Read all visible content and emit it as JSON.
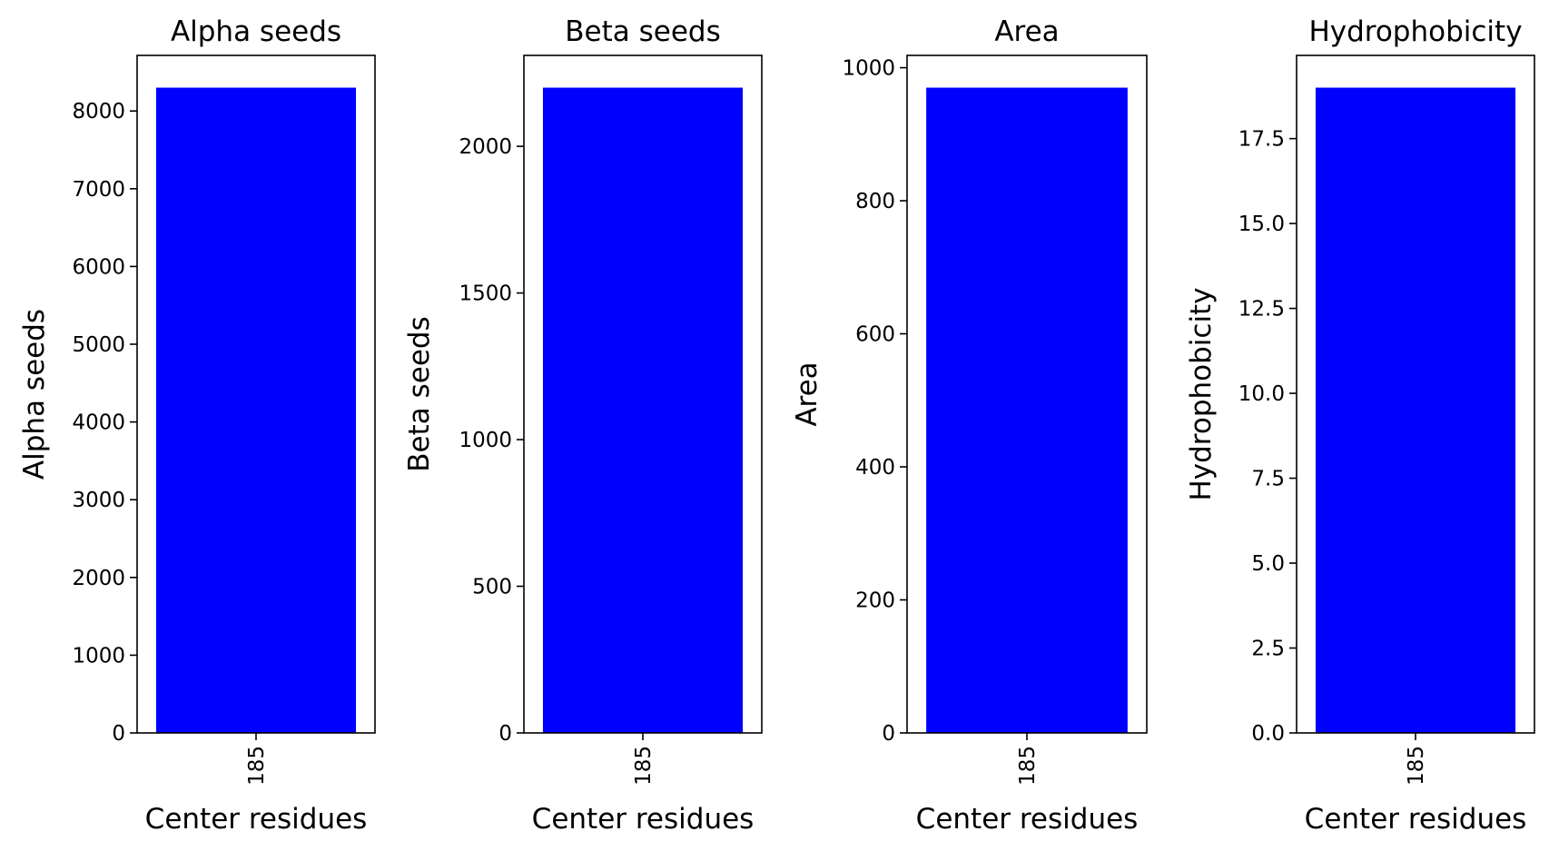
{
  "chart_data": [
    {
      "type": "bar",
      "title": "Alpha seeds",
      "xlabel": "Center residues",
      "ylabel": "Alpha seeds",
      "categories": [
        "185"
      ],
      "values": [
        8300
      ],
      "ylim": [
        0,
        8715
      ],
      "yticks": [
        "0",
        "1000",
        "2000",
        "3000",
        "4000",
        "5000",
        "6000",
        "7000",
        "8000"
      ],
      "ytick_values": [
        0,
        1000,
        2000,
        3000,
        4000,
        5000,
        6000,
        7000,
        8000
      ],
      "color": "#0000ff",
      "grid": false
    },
    {
      "type": "bar",
      "title": "Beta seeds",
      "xlabel": "Center residues",
      "ylabel": "Beta seeds",
      "categories": [
        "185"
      ],
      "values": [
        2200
      ],
      "ylim": [
        0,
        2310
      ],
      "yticks": [
        "0",
        "500",
        "1000",
        "1500",
        "2000"
      ],
      "ytick_values": [
        0,
        500,
        1000,
        1500,
        2000
      ],
      "color": "#0000ff",
      "grid": false
    },
    {
      "type": "bar",
      "title": "Area",
      "xlabel": "Center residues",
      "ylabel": "Area",
      "categories": [
        "185"
      ],
      "values": [
        970
      ],
      "ylim": [
        0,
        1018.5
      ],
      "yticks": [
        "0",
        "200",
        "400",
        "600",
        "800",
        "1000"
      ],
      "ytick_values": [
        0,
        200,
        400,
        600,
        800,
        1000
      ],
      "color": "#0000ff",
      "grid": false
    },
    {
      "type": "bar",
      "title": "Hydrophobicity",
      "xlabel": "Center residues",
      "ylabel": "Hydrophobicity",
      "categories": [
        "185"
      ],
      "values": [
        19
      ],
      "ylim": [
        0,
        19.95
      ],
      "yticks": [
        "0.0",
        "2.5",
        "5.0",
        "7.5",
        "10.0",
        "12.5",
        "15.0",
        "17.5"
      ],
      "ytick_values": [
        0,
        2.5,
        5,
        7.5,
        10,
        12.5,
        15,
        17.5
      ],
      "color": "#0000ff",
      "grid": false
    }
  ]
}
